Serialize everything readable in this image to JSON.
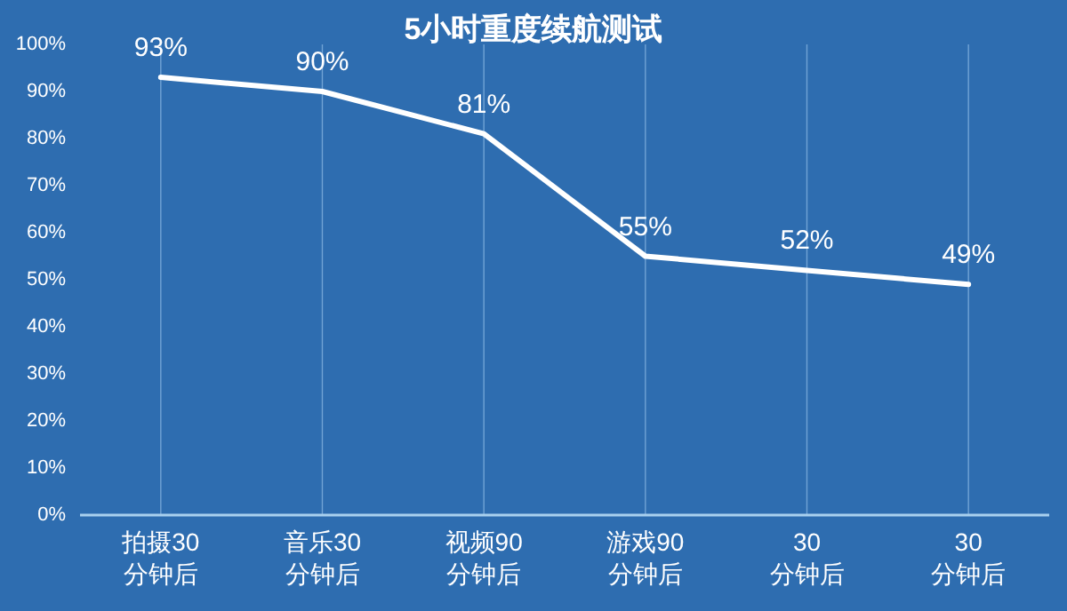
{
  "chart_data": {
    "type": "line",
    "title": "5小时重度续航测试",
    "categories": [
      "拍摄30\n分钟后",
      "音乐30\n分钟后",
      "视频90\n分钟后",
      "游戏90\n分钟后",
      "30\n分钟后",
      "30\n分钟后"
    ],
    "series": [
      {
        "color": "#ffffff",
        "values": [
          93,
          90,
          81,
          55,
          52,
          49
        ]
      }
    ],
    "ylim": [
      0,
      100
    ],
    "yticks": [
      {
        "value": 0,
        "label": "0%"
      },
      {
        "value": 10,
        "label": "10%"
      },
      {
        "value": 20,
        "label": "20%"
      },
      {
        "value": 30,
        "label": "30%"
      },
      {
        "value": 40,
        "label": "40%"
      },
      {
        "value": 50,
        "label": "50%"
      },
      {
        "value": 60,
        "label": "60%"
      },
      {
        "value": 70,
        "label": "70%"
      },
      {
        "value": 80,
        "label": "80%"
      },
      {
        "value": 90,
        "label": "90%"
      },
      {
        "value": 100,
        "label": "100%"
      }
    ],
    "value_labels": [
      "93%",
      "90%",
      "81%",
      "55%",
      "52%",
      "49%"
    ],
    "grid": "x",
    "marker": "none",
    "line_style": "solid"
  }
}
